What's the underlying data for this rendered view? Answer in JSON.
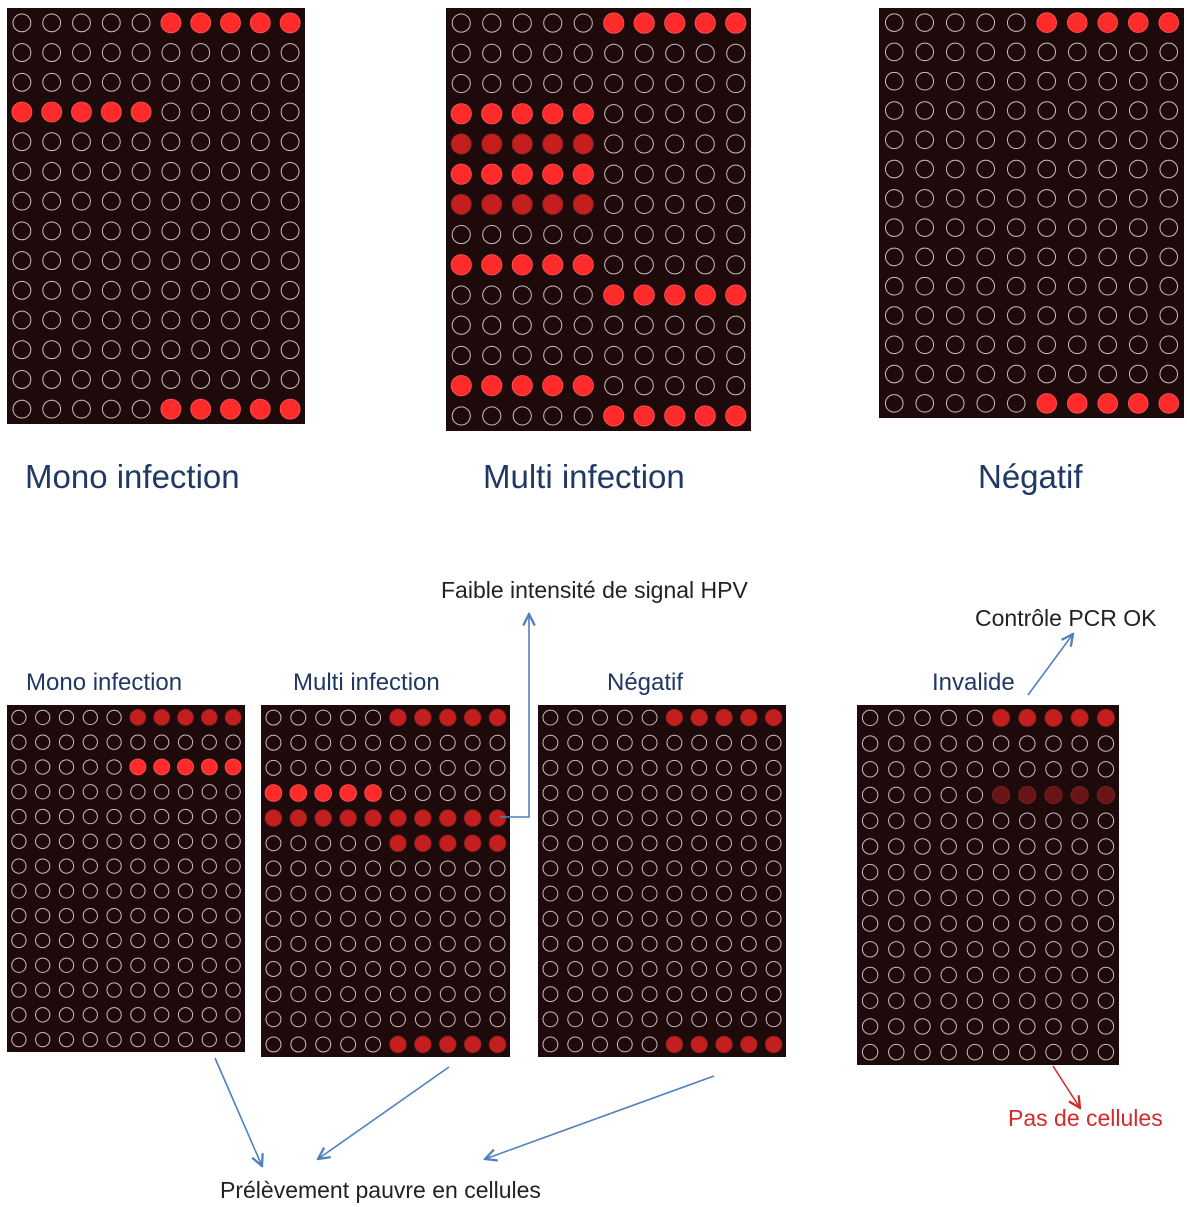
{
  "top_labels": {
    "mono": "Mono infection",
    "multi": "Multi infection",
    "negatif": "Négatif"
  },
  "bottom_labels": {
    "mono": "Mono infection",
    "multi": "Multi infection",
    "negatif": "Négatif",
    "invalide": "Invalide"
  },
  "annotations": {
    "faible": "Faible intensité de signal HPV",
    "controle": "Contrôle PCR OK",
    "pas_cellules": "Pas de cellules",
    "prelevement": "Prélèvement pauvre en cellules"
  },
  "colors": {
    "background": "#1e0a0a",
    "spot_strong": "#ff2a2a",
    "spot_medium": "#c41e1e",
    "spot_weak": "#6a1515",
    "ring": "#cdbdbd",
    "caption": "#1f3864",
    "arrow": "#4f81bd",
    "red_note": "#d42a2a"
  },
  "arrays": [
    {
      "name": "top-mono",
      "rows": 14,
      "cols": 10,
      "spots": [
        [
          0,
          5,
          3
        ],
        [
          0,
          6,
          3
        ],
        [
          0,
          7,
          3
        ],
        [
          0,
          8,
          3
        ],
        [
          0,
          9,
          3
        ],
        [
          3,
          0,
          3
        ],
        [
          3,
          1,
          3
        ],
        [
          3,
          2,
          3
        ],
        [
          3,
          3,
          3
        ],
        [
          3,
          4,
          3
        ],
        [
          13,
          5,
          3
        ],
        [
          13,
          6,
          3
        ],
        [
          13,
          7,
          3
        ],
        [
          13,
          8,
          3
        ],
        [
          13,
          9,
          3
        ]
      ]
    },
    {
      "name": "top-multi",
      "rows": 14,
      "cols": 10,
      "spots": [
        [
          0,
          5,
          3
        ],
        [
          0,
          6,
          3
        ],
        [
          0,
          7,
          3
        ],
        [
          0,
          8,
          3
        ],
        [
          0,
          9,
          3
        ],
        [
          3,
          0,
          3
        ],
        [
          3,
          1,
          3
        ],
        [
          3,
          2,
          3
        ],
        [
          3,
          3,
          3
        ],
        [
          3,
          4,
          3
        ],
        [
          4,
          0,
          1
        ],
        [
          4,
          1,
          1
        ],
        [
          4,
          2,
          1
        ],
        [
          4,
          3,
          1
        ],
        [
          4,
          4,
          1
        ],
        [
          5,
          0,
          3
        ],
        [
          5,
          1,
          3
        ],
        [
          5,
          2,
          3
        ],
        [
          5,
          3,
          3
        ],
        [
          5,
          4,
          3
        ],
        [
          6,
          0,
          1
        ],
        [
          6,
          1,
          1
        ],
        [
          6,
          2,
          1
        ],
        [
          6,
          3,
          1
        ],
        [
          6,
          4,
          1
        ],
        [
          8,
          0,
          3
        ],
        [
          8,
          1,
          3
        ],
        [
          8,
          2,
          3
        ],
        [
          8,
          3,
          3
        ],
        [
          8,
          4,
          3
        ],
        [
          9,
          5,
          3
        ],
        [
          9,
          6,
          3
        ],
        [
          9,
          7,
          3
        ],
        [
          9,
          8,
          3
        ],
        [
          9,
          9,
          3
        ],
        [
          12,
          0,
          3
        ],
        [
          12,
          1,
          3
        ],
        [
          12,
          2,
          3
        ],
        [
          12,
          3,
          3
        ],
        [
          12,
          4,
          3
        ],
        [
          13,
          5,
          3
        ],
        [
          13,
          6,
          3
        ],
        [
          13,
          7,
          3
        ],
        [
          13,
          8,
          3
        ],
        [
          13,
          9,
          3
        ]
      ]
    },
    {
      "name": "top-negatif",
      "rows": 14,
      "cols": 10,
      "spots": [
        [
          0,
          5,
          3
        ],
        [
          0,
          6,
          3
        ],
        [
          0,
          7,
          3
        ],
        [
          0,
          8,
          3
        ],
        [
          0,
          9,
          3
        ],
        [
          13,
          5,
          3
        ],
        [
          13,
          6,
          3
        ],
        [
          13,
          7,
          3
        ],
        [
          13,
          8,
          3
        ],
        [
          13,
          9,
          3
        ]
      ]
    },
    {
      "name": "bottom-mono",
      "rows": 14,
      "cols": 10,
      "spots": [
        [
          0,
          5,
          1
        ],
        [
          0,
          6,
          1
        ],
        [
          0,
          7,
          1
        ],
        [
          0,
          8,
          1
        ],
        [
          0,
          9,
          1
        ],
        [
          2,
          5,
          3
        ],
        [
          2,
          6,
          3
        ],
        [
          2,
          7,
          3
        ],
        [
          2,
          8,
          3
        ],
        [
          2,
          9,
          3
        ]
      ]
    },
    {
      "name": "bottom-multi",
      "rows": 14,
      "cols": 10,
      "spots": [
        [
          0,
          5,
          1
        ],
        [
          0,
          6,
          1
        ],
        [
          0,
          7,
          1
        ],
        [
          0,
          8,
          1
        ],
        [
          0,
          9,
          1
        ],
        [
          3,
          0,
          3
        ],
        [
          3,
          1,
          3
        ],
        [
          3,
          2,
          3
        ],
        [
          3,
          3,
          3
        ],
        [
          3,
          4,
          3
        ],
        [
          4,
          0,
          1
        ],
        [
          4,
          1,
          1
        ],
        [
          4,
          2,
          1
        ],
        [
          4,
          3,
          1
        ],
        [
          4,
          4,
          1
        ],
        [
          4,
          5,
          2
        ],
        [
          4,
          6,
          2
        ],
        [
          4,
          7,
          2
        ],
        [
          4,
          8,
          2
        ],
        [
          4,
          9,
          2
        ],
        [
          5,
          5,
          1
        ],
        [
          5,
          6,
          1
        ],
        [
          5,
          7,
          1
        ],
        [
          5,
          8,
          1
        ],
        [
          5,
          9,
          1
        ],
        [
          13,
          5,
          1
        ],
        [
          13,
          6,
          1
        ],
        [
          13,
          7,
          1
        ],
        [
          13,
          8,
          1
        ],
        [
          13,
          9,
          1
        ]
      ]
    },
    {
      "name": "bottom-negatif",
      "rows": 14,
      "cols": 10,
      "spots": [
        [
          0,
          5,
          2
        ],
        [
          0,
          6,
          2
        ],
        [
          0,
          7,
          2
        ],
        [
          0,
          8,
          2
        ],
        [
          0,
          9,
          2
        ],
        [
          13,
          5,
          1
        ],
        [
          13,
          6,
          1
        ],
        [
          13,
          7,
          1
        ],
        [
          13,
          8,
          1
        ],
        [
          13,
          9,
          1
        ]
      ]
    },
    {
      "name": "bottom-invalide",
      "rows": 14,
      "cols": 10,
      "spots": [
        [
          0,
          5,
          2
        ],
        [
          0,
          6,
          2
        ],
        [
          0,
          7,
          2
        ],
        [
          0,
          8,
          2
        ],
        [
          0,
          9,
          2
        ],
        [
          3,
          5,
          0
        ],
        [
          3,
          6,
          0
        ],
        [
          3,
          7,
          0
        ],
        [
          3,
          8,
          0
        ],
        [
          3,
          9,
          0
        ]
      ]
    }
  ]
}
